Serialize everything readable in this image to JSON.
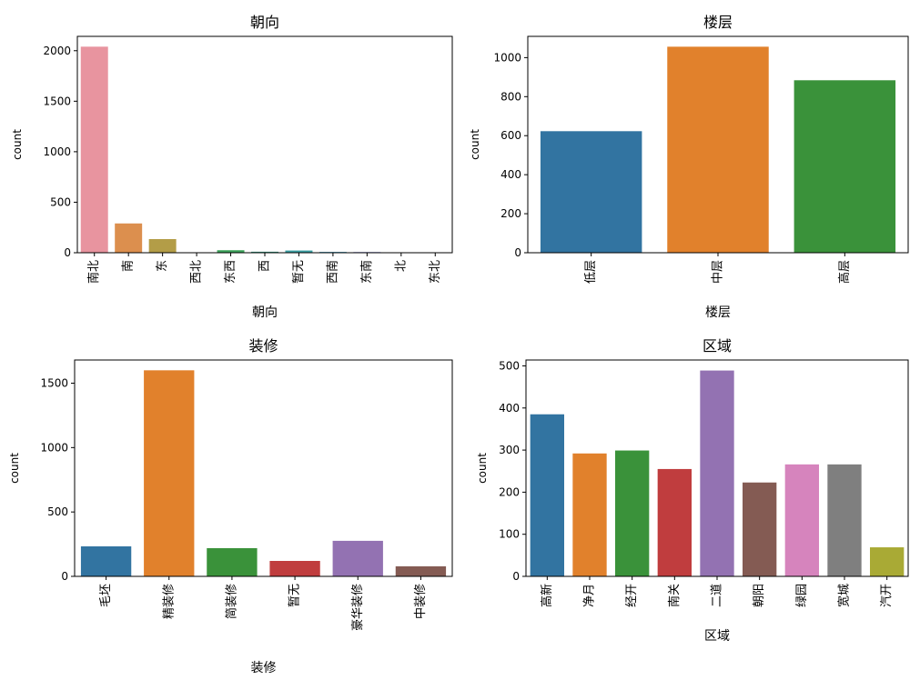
{
  "chart_data": [
    {
      "type": "bar",
      "title": "朝向",
      "xlabel": "朝向",
      "ylabel": "count",
      "categories": [
        "南北",
        "南",
        "东",
        "西北",
        "东西",
        "西",
        "暂无",
        "西南",
        "东南",
        "北",
        "东北"
      ],
      "values": [
        2040,
        290,
        135,
        2,
        25,
        10,
        22,
        8,
        7,
        1,
        1
      ],
      "colors": [
        "#e8949f",
        "#dc8f4e",
        "#b39d47",
        "#8faa3e",
        "#3da35b",
        "#3c9d85",
        "#3ba0a3",
        "#3e9bbd",
        "#8a8ed6",
        "#c381d6",
        "#e684b8"
      ],
      "yticks": [
        0,
        500,
        1000,
        1500,
        2000
      ],
      "ylim": [
        0,
        2142
      ]
    },
    {
      "type": "bar",
      "title": "楼层",
      "xlabel": "楼层",
      "ylabel": "count",
      "categories": [
        "低层",
        "中层",
        "高层"
      ],
      "values": [
        623,
        1056,
        884
      ],
      "colors": [
        "#3274a1",
        "#e1812c",
        "#3a923a"
      ],
      "yticks": [
        0,
        200,
        400,
        600,
        800,
        1000
      ],
      "ylim": [
        0,
        1109
      ]
    },
    {
      "type": "bar",
      "title": "装修",
      "xlabel": "装修",
      "ylabel": "count",
      "categories": [
        "毛坯",
        "精装修",
        "简装修",
        "暂无",
        "豪华装修",
        "中装修"
      ],
      "values": [
        233,
        1600,
        219,
        120,
        276,
        78
      ],
      "colors": [
        "#3274a1",
        "#e1812c",
        "#3a923a",
        "#c03d3e",
        "#9372b2",
        "#845b53"
      ],
      "yticks": [
        0,
        500,
        1000,
        1500
      ],
      "ylim": [
        0,
        1680
      ]
    },
    {
      "type": "bar",
      "title": "区域",
      "xlabel": "区域",
      "ylabel": "count",
      "categories": [
        "高新",
        "净月",
        "经开",
        "南关",
        "二道",
        "朝阳",
        "绿园",
        "宽城",
        "汽开"
      ],
      "values": [
        385,
        292,
        299,
        255,
        489,
        223,
        266,
        266,
        69
      ],
      "colors": [
        "#3274a1",
        "#e1812c",
        "#3a923a",
        "#c03d3e",
        "#9372b2",
        "#845b53",
        "#d684bd",
        "#7f7f7f",
        "#a9aa35"
      ],
      "yticks": [
        0,
        100,
        200,
        300,
        400,
        500
      ],
      "ylim": [
        0,
        514
      ]
    }
  ]
}
